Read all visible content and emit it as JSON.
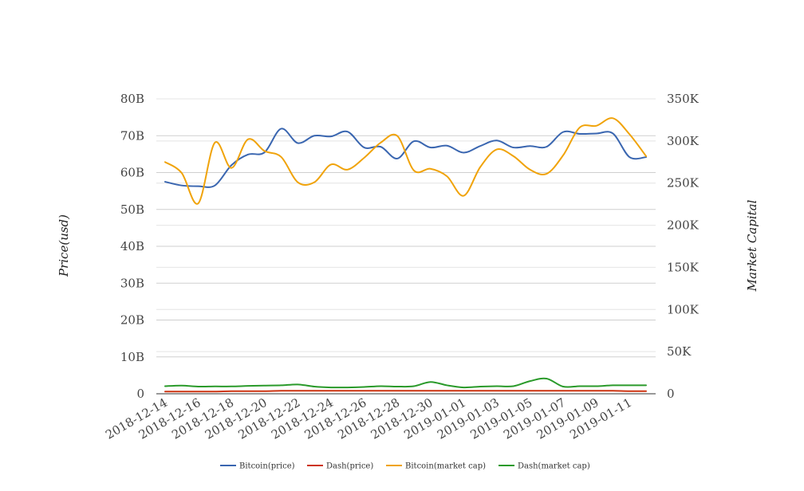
{
  "chart_data": {
    "type": "line",
    "title": "",
    "ylabel_left": "Price(usd)",
    "ylabel_right": "Market Capital",
    "x": [
      "2018-12-14",
      "2018-12-15",
      "2018-12-16",
      "2018-12-17",
      "2018-12-18",
      "2018-12-19",
      "2018-12-20",
      "2018-12-21",
      "2018-12-22",
      "2018-12-23",
      "2018-12-24",
      "2018-12-25",
      "2018-12-26",
      "2018-12-27",
      "2018-12-28",
      "2018-12-29",
      "2018-12-30",
      "2018-12-31",
      "2019-01-01",
      "2019-01-02",
      "2019-01-03",
      "2019-01-04",
      "2019-01-05",
      "2019-01-06",
      "2019-01-07",
      "2019-01-08",
      "2019-01-09",
      "2019-01-10",
      "2019-01-11",
      "2019-01-12"
    ],
    "x_tick_labels": [
      "2018-12-14",
      "2018-12-16",
      "2018-12-18",
      "2018-12-20",
      "2018-12-22",
      "2018-12-24",
      "2018-12-26",
      "2018-12-28",
      "2018-12-30",
      "2019-01-01",
      "2019-01-03",
      "2019-01-05",
      "2019-01-07",
      "2019-01-09",
      "2019-01-11"
    ],
    "y_left": {
      "min": 0,
      "max": 80000000000,
      "ticks": [
        0,
        10000000000,
        20000000000,
        30000000000,
        40000000000,
        50000000000,
        60000000000,
        70000000000,
        80000000000
      ],
      "tick_labels": [
        "0",
        "10B",
        "20B",
        "30B",
        "40B",
        "50B",
        "60B",
        "70B",
        "80B"
      ]
    },
    "y_right": {
      "min": 0,
      "max": 350000,
      "ticks": [
        0,
        50000,
        100000,
        150000,
        200000,
        250000,
        300000,
        350000
      ],
      "tick_labels": [
        "0",
        "50K",
        "100K",
        "150K",
        "200K",
        "250K",
        "300K",
        "350K"
      ]
    },
    "grid": true,
    "legend_position": "bottom",
    "series": [
      {
        "name": "Bitcoin(price)",
        "axis": "left",
        "color": "#3a66b0",
        "values": [
          57500000000.0,
          56500000000.0,
          56300000000.0,
          56500000000.0,
          62000000000.0,
          64900000000.0,
          65500000000.0,
          71900000000.0,
          68000000000.0,
          70000000000.0,
          69800000000.0,
          71100000000.0,
          66800000000.0,
          67000000000.0,
          63800000000.0,
          68500000000.0,
          66800000000.0,
          67300000000.0,
          65400000000.0,
          67200000000.0,
          68700000000.0,
          66800000000.0,
          67200000000.0,
          67000000000.0,
          71000000000.0,
          70500000000.0,
          70600000000.0,
          70600000000.0,
          64200000000.0,
          64200000000.0
        ]
      },
      {
        "name": "Dash(price)",
        "axis": "left",
        "color": "#cc3311",
        "values": [
          600000000.0,
          600000000.0,
          600000000.0,
          600000000.0,
          700000000.0,
          700000000.0,
          700000000.0,
          800000000.0,
          800000000.0,
          800000000.0,
          800000000.0,
          800000000.0,
          800000000.0,
          800000000.0,
          800000000.0,
          800000000.0,
          800000000.0,
          800000000.0,
          800000000.0,
          800000000.0,
          800000000.0,
          800000000.0,
          800000000.0,
          800000000.0,
          800000000.0,
          800000000.0,
          800000000.0,
          800000000.0,
          700000000.0,
          700000000.0
        ]
      },
      {
        "name": "Bitcoin(market cap)",
        "axis": "right",
        "color": "#f0a30a",
        "values": [
          275000,
          262000,
          226000,
          298000,
          268000,
          302000,
          288000,
          281000,
          251000,
          251000,
          272000,
          266000,
          280000,
          298000,
          306000,
          265000,
          267000,
          258000,
          235000,
          269000,
          290000,
          282000,
          266000,
          261000,
          283000,
          316000,
          318000,
          327000,
          308000,
          282000
        ]
      },
      {
        "name": "Dash(market cap)",
        "axis": "right",
        "color": "#2a9a2a",
        "values": [
          9000,
          9700,
          8500,
          8700,
          8700,
          9300,
          9700,
          10000,
          11000,
          8500,
          7500,
          7500,
          8000,
          9000,
          8500,
          9000,
          14000,
          10000,
          7500,
          8500,
          9000,
          9000,
          15000,
          18000,
          8500,
          9000,
          9000,
          10000,
          10000,
          10000
        ]
      }
    ]
  }
}
